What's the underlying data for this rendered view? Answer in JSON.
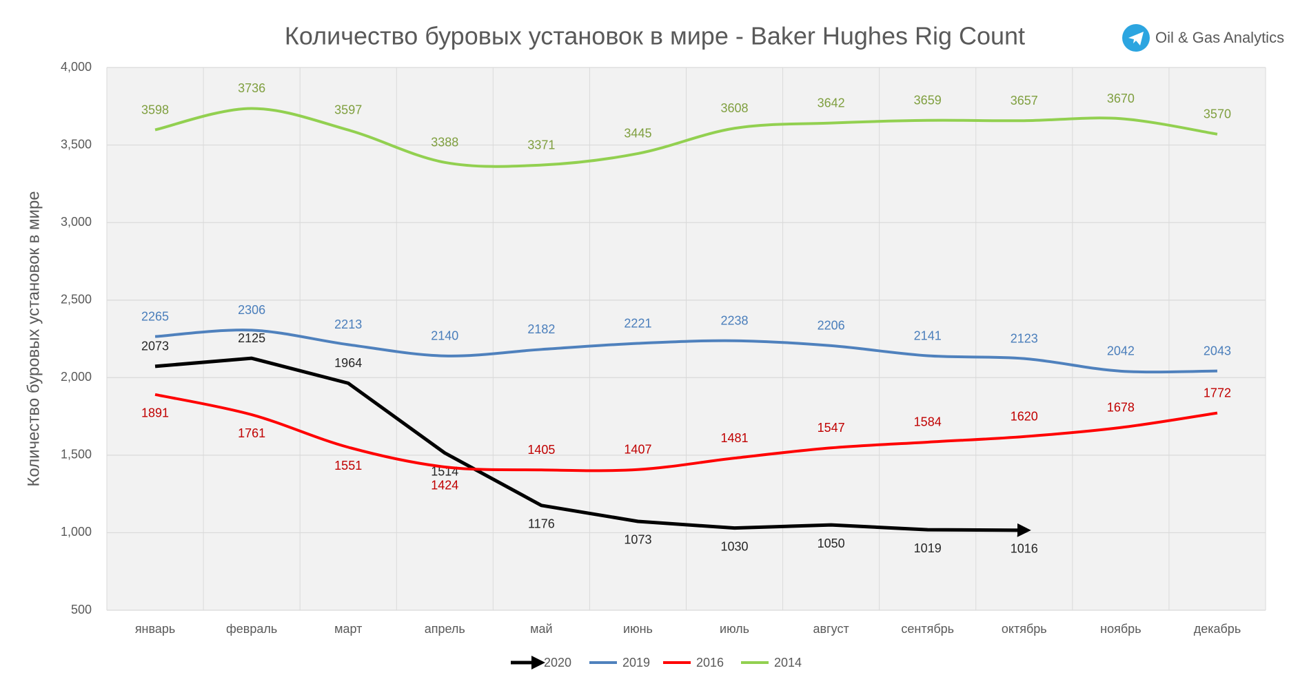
{
  "chart_data": {
    "type": "line",
    "title": "Количество буровых установок в мире - Baker Hughes Rig Count",
    "watermark": "Oil & Gas Analytics",
    "y_label": "Количество буровых установок в мире",
    "categories": [
      "январь",
      "февраль",
      "март",
      "апрель",
      "май",
      "июнь",
      "июль",
      "август",
      "сентябрь",
      "октябрь",
      "ноябрь",
      "декабрь"
    ],
    "series": [
      {
        "name": "2020",
        "color": "#000000",
        "label_color": "#262626",
        "arrow": true,
        "smooth": false,
        "values": [
          2073,
          2125,
          1964,
          1514,
          1176,
          1073,
          1030,
          1050,
          1019,
          1016,
          null,
          null
        ]
      },
      {
        "name": "2019",
        "color": "#4f81bd",
        "label_color": "#4a7ebb",
        "arrow": false,
        "smooth": true,
        "values": [
          2265,
          2306,
          2213,
          2140,
          2182,
          2221,
          2238,
          2206,
          2141,
          2123,
          2042,
          2043
        ]
      },
      {
        "name": "2016",
        "color": "#ff0000",
        "label_color": "#c00000",
        "arrow": false,
        "smooth": true,
        "values": [
          1891,
          1761,
          1551,
          1424,
          1405,
          1407,
          1481,
          1547,
          1584,
          1620,
          1678,
          1772
        ]
      },
      {
        "name": "2014",
        "color": "#92d050",
        "label_color": "#7f9f3f",
        "arrow": false,
        "smooth": true,
        "values": [
          3598,
          3736,
          3597,
          3388,
          3371,
          3445,
          3608,
          3642,
          3659,
          3657,
          3670,
          3570
        ]
      }
    ],
    "ylim": [
      500,
      4000
    ],
    "yticks": [
      500,
      {
        "value": 1000,
        "label": "1,000"
      },
      {
        "value": 1500,
        "label": "1,500"
      },
      {
        "value": 2000,
        "label": "2,000"
      },
      {
        "value": 2500,
        "label": "2,500"
      },
      {
        "value": 3000,
        "label": "3,000"
      },
      {
        "value": 3500,
        "label": "3,500"
      },
      {
        "value": 4000,
        "label": "4,000"
      }
    ],
    "grid": true,
    "legend": "bottom"
  }
}
